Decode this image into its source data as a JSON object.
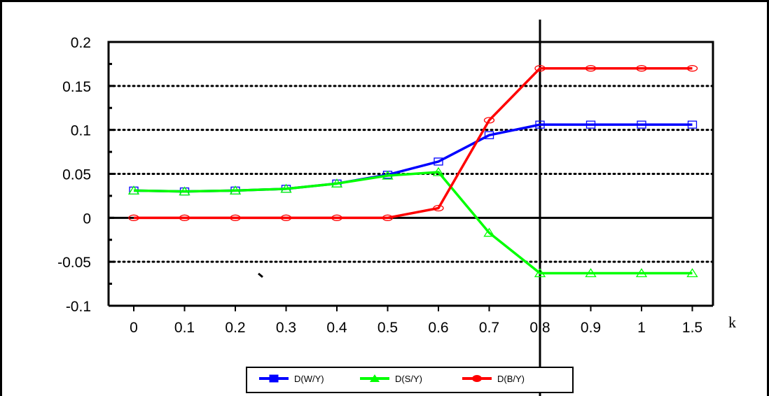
{
  "chart_data": {
    "type": "line",
    "xlabel": "k",
    "ylabel": "",
    "categories": [
      "0",
      "0.1",
      "0.2",
      "0.3",
      "0.4",
      "0.5",
      "0.6",
      "0.7",
      "0.8",
      "0.9",
      "1",
      "1.5"
    ],
    "ylim": [
      -0.1,
      0.2
    ],
    "yticks": [
      "0.2",
      "0.15",
      "0.1",
      "0.05",
      "0",
      "-0.05",
      "-0.1"
    ],
    "grid": "horizontal dotted",
    "legend": "bottom",
    "series": [
      {
        "name": "D(W/Y)",
        "color": "#0000ff",
        "marker": "square",
        "values": [
          0.031,
          0.03,
          0.031,
          0.033,
          0.039,
          0.049,
          0.064,
          0.094,
          0.106,
          0.106,
          0.106,
          0.106
        ]
      },
      {
        "name": "D(S/Y)",
        "color": "#00ff00",
        "marker": "triangle",
        "values": [
          0.031,
          0.03,
          0.031,
          0.033,
          0.039,
          0.048,
          0.052,
          -0.017,
          -0.063,
          -0.063,
          -0.063,
          -0.063
        ]
      },
      {
        "name": "D(B/Y)",
        "color": "#ff0000",
        "marker": "circle",
        "values": [
          0,
          0,
          0,
          0,
          0,
          0,
          0.011,
          0.111,
          0.17,
          0.17,
          0.17,
          0.17
        ]
      }
    ],
    "reference_line": {
      "x": "0.8"
    }
  }
}
